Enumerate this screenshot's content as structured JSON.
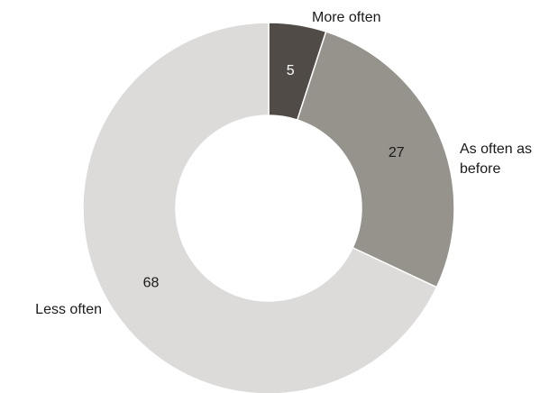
{
  "chart_data": {
    "type": "pie",
    "style": "donut",
    "categories": [
      "More often",
      "As often as before",
      "Less often"
    ],
    "display_labels": [
      [
        "More often"
      ],
      [
        "As often as",
        "before"
      ],
      [
        "Less often"
      ]
    ],
    "values": [
      5,
      27,
      68
    ],
    "colors": [
      "#514b47",
      "#96928c",
      "#dcdbd9"
    ],
    "value_label_colors": [
      "#ffffff",
      "#1a1a1a",
      "#1a1a1a"
    ],
    "title": "",
    "legend": "none"
  }
}
